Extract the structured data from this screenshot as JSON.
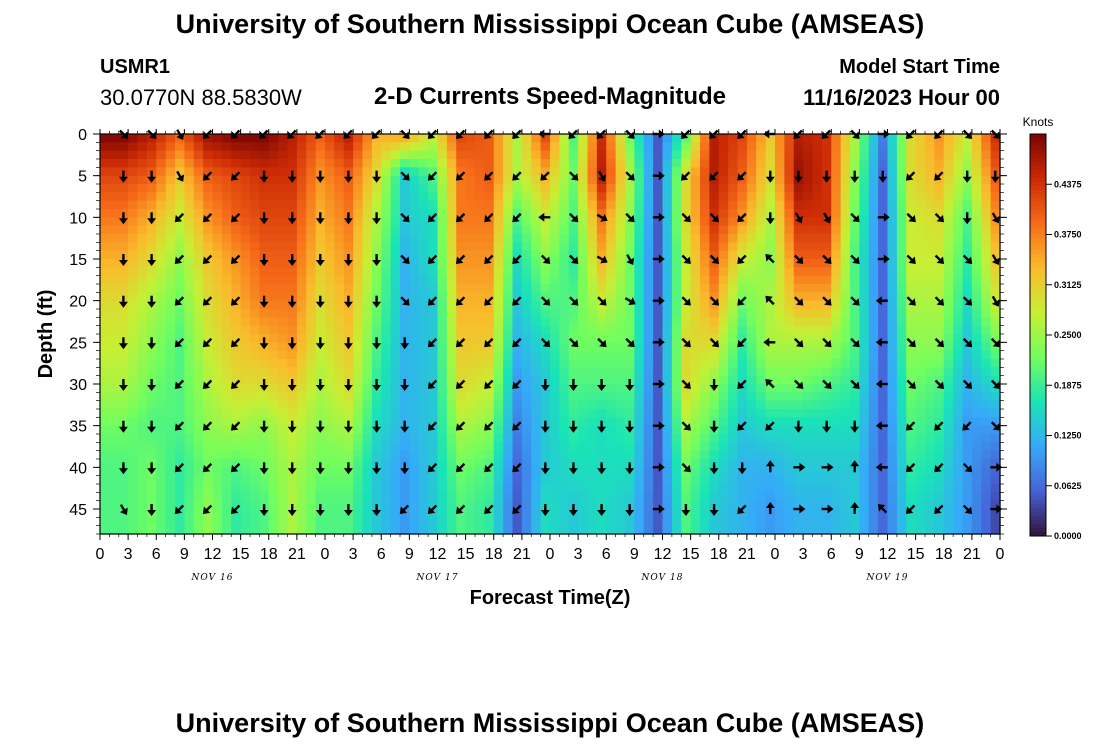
{
  "header": {
    "title": "University of Southern Mississippi Ocean Cube (AMSEAS)",
    "station": "USMR1",
    "coords": "30.0770N  88.5830W",
    "subtitle": "2-D Currents Speed-Magnitude",
    "model_start_label": "Model Start Time",
    "model_start_value": "11/16/2023 Hour 00"
  },
  "footer": {
    "title": "University of Southern Mississippi Ocean Cube (AMSEAS)"
  },
  "colors": {
    "scale": [
      "#30123b",
      "#4662d7",
      "#36aaf9",
      "#1ae4b6",
      "#72fe5e",
      "#c7ef34",
      "#fabb2c",
      "#f66b19",
      "#cb2a04",
      "#7a0403"
    ]
  },
  "chart_data": {
    "type": "heatmap",
    "title": "2-D Currents Speed-Magnitude",
    "xlabel": "Forecast Time(Z)",
    "ylabel": "Depth (ft)",
    "x_ticks": [
      "0",
      "3",
      "6",
      "9",
      "12",
      "15",
      "18",
      "21",
      "0",
      "3",
      "6",
      "9",
      "12",
      "15",
      "18",
      "21",
      "0",
      "3",
      "6",
      "9",
      "12",
      "15",
      "18",
      "21",
      "0",
      "3",
      "6",
      "9",
      "12",
      "15",
      "18",
      "21",
      "0"
    ],
    "x_range_hours": [
      0,
      96
    ],
    "day_labels": [
      {
        "label": "NOV 16",
        "hour": 12
      },
      {
        "label": "NOV 17",
        "hour": 36
      },
      {
        "label": "NOV 18",
        "hour": 60
      },
      {
        "label": "NOV 19",
        "hour": 84
      }
    ],
    "y_ticks": [
      "0",
      "5",
      "10",
      "15",
      "20",
      "25",
      "30",
      "35",
      "40",
      "45"
    ],
    "y_range_ft": [
      0,
      48
    ],
    "colorbar": {
      "units": "Knots",
      "min": 0.0,
      "max": 0.5,
      "tick_labels": [
        "0.4375",
        "0.3750",
        "0.3125",
        "0.2500",
        "0.1875",
        "0.1250",
        "0.0625",
        "0.0000"
      ],
      "tick_values": [
        0.4375,
        0.375,
        0.3125,
        0.25,
        0.1875,
        0.125,
        0.0625,
        0.0
      ]
    },
    "arrow_depths_ft": [
      0,
      5,
      10,
      15,
      20,
      25,
      30,
      35,
      40,
      45
    ],
    "arrow_hours": [
      2.5,
      5.5,
      8.5,
      11.5,
      14.5,
      17.5,
      20.5,
      23.5,
      26.5,
      29.5,
      32.5,
      35.5,
      38.5,
      41.5,
      44.5,
      47.5,
      50.5,
      53.5,
      56.5,
      59.5,
      62.5,
      65.5,
      68.5,
      71.5,
      74.5,
      77.5,
      80.5,
      83.5,
      86.5,
      89.5,
      92.5,
      95.5
    ],
    "speed_knots_by_depth": [
      [
        0.5,
        0.46,
        0.4,
        0.48,
        0.5,
        0.5,
        0.46,
        0.4,
        0.46,
        0.34,
        0.36,
        0.28,
        0.42,
        0.4,
        0.26,
        0.42,
        0.2,
        0.44,
        0.22,
        0.05,
        0.2,
        0.46,
        0.42,
        0.32,
        0.46,
        0.44,
        0.26,
        0.08,
        0.3,
        0.36,
        0.28,
        0.44
      ],
      [
        0.42,
        0.4,
        0.32,
        0.4,
        0.42,
        0.44,
        0.44,
        0.36,
        0.4,
        0.3,
        0.14,
        0.2,
        0.38,
        0.4,
        0.26,
        0.34,
        0.22,
        0.46,
        0.26,
        0.05,
        0.3,
        0.46,
        0.4,
        0.3,
        0.48,
        0.44,
        0.24,
        0.06,
        0.3,
        0.34,
        0.24,
        0.4
      ],
      [
        0.38,
        0.34,
        0.28,
        0.36,
        0.4,
        0.42,
        0.42,
        0.34,
        0.38,
        0.26,
        0.14,
        0.16,
        0.38,
        0.38,
        0.2,
        0.28,
        0.2,
        0.38,
        0.24,
        0.05,
        0.3,
        0.44,
        0.36,
        0.26,
        0.44,
        0.44,
        0.22,
        0.06,
        0.28,
        0.3,
        0.2,
        0.36
      ],
      [
        0.34,
        0.3,
        0.24,
        0.32,
        0.36,
        0.4,
        0.4,
        0.32,
        0.36,
        0.24,
        0.12,
        0.16,
        0.36,
        0.36,
        0.16,
        0.24,
        0.18,
        0.34,
        0.22,
        0.05,
        0.28,
        0.4,
        0.28,
        0.24,
        0.4,
        0.4,
        0.2,
        0.06,
        0.28,
        0.28,
        0.18,
        0.32
      ],
      [
        0.3,
        0.26,
        0.22,
        0.3,
        0.34,
        0.38,
        0.38,
        0.3,
        0.34,
        0.22,
        0.12,
        0.14,
        0.34,
        0.34,
        0.14,
        0.2,
        0.2,
        0.28,
        0.22,
        0.05,
        0.28,
        0.36,
        0.22,
        0.26,
        0.34,
        0.34,
        0.2,
        0.06,
        0.26,
        0.26,
        0.16,
        0.28
      ],
      [
        0.28,
        0.24,
        0.2,
        0.28,
        0.32,
        0.34,
        0.36,
        0.28,
        0.32,
        0.2,
        0.12,
        0.14,
        0.32,
        0.32,
        0.12,
        0.16,
        0.22,
        0.22,
        0.22,
        0.05,
        0.3,
        0.3,
        0.18,
        0.26,
        0.26,
        0.26,
        0.2,
        0.06,
        0.24,
        0.24,
        0.14,
        0.22
      ],
      [
        0.26,
        0.22,
        0.2,
        0.26,
        0.3,
        0.3,
        0.32,
        0.26,
        0.3,
        0.18,
        0.12,
        0.14,
        0.3,
        0.28,
        0.1,
        0.14,
        0.2,
        0.2,
        0.2,
        0.05,
        0.3,
        0.24,
        0.16,
        0.22,
        0.22,
        0.2,
        0.18,
        0.06,
        0.22,
        0.2,
        0.12,
        0.16
      ],
      [
        0.22,
        0.2,
        0.2,
        0.24,
        0.26,
        0.24,
        0.28,
        0.24,
        0.26,
        0.16,
        0.12,
        0.14,
        0.26,
        0.24,
        0.08,
        0.14,
        0.18,
        0.16,
        0.18,
        0.05,
        0.26,
        0.2,
        0.14,
        0.16,
        0.16,
        0.16,
        0.16,
        0.06,
        0.2,
        0.18,
        0.1,
        0.1
      ],
      [
        0.2,
        0.22,
        0.18,
        0.22,
        0.2,
        0.22,
        0.26,
        0.22,
        0.22,
        0.14,
        0.1,
        0.14,
        0.22,
        0.2,
        0.06,
        0.14,
        0.16,
        0.16,
        0.16,
        0.05,
        0.22,
        0.16,
        0.12,
        0.12,
        0.14,
        0.14,
        0.14,
        0.06,
        0.18,
        0.16,
        0.1,
        0.06
      ],
      [
        0.2,
        0.22,
        0.18,
        0.24,
        0.18,
        0.2,
        0.26,
        0.2,
        0.2,
        0.14,
        0.1,
        0.14,
        0.2,
        0.18,
        0.05,
        0.16,
        0.14,
        0.16,
        0.14,
        0.05,
        0.2,
        0.14,
        0.12,
        0.1,
        0.12,
        0.12,
        0.14,
        0.06,
        0.16,
        0.14,
        0.1,
        0.04
      ]
    ],
    "direction_deg_by_depth": [
      [
        315,
        315,
        300,
        225,
        225,
        225,
        225,
        225,
        225,
        225,
        315,
        225,
        225,
        225,
        225,
        180,
        225,
        225,
        315,
        0,
        225,
        225,
        225,
        180,
        225,
        225,
        315,
        0,
        225,
        225,
        315,
        315
      ],
      [
        270,
        270,
        300,
        225,
        225,
        270,
        270,
        270,
        270,
        270,
        315,
        225,
        225,
        225,
        225,
        225,
        315,
        300,
        315,
        0,
        225,
        225,
        225,
        270,
        270,
        270,
        270,
        270,
        225,
        225,
        270,
        270
      ],
      [
        270,
        270,
        225,
        225,
        225,
        270,
        270,
        270,
        270,
        270,
        315,
        225,
        225,
        225,
        225,
        180,
        315,
        330,
        315,
        0,
        315,
        315,
        225,
        270,
        300,
        300,
        315,
        0,
        315,
        315,
        270,
        300
      ],
      [
        270,
        270,
        225,
        225,
        225,
        270,
        270,
        270,
        270,
        270,
        315,
        225,
        225,
        225,
        225,
        315,
        315,
        330,
        300,
        0,
        315,
        315,
        225,
        135,
        315,
        315,
        315,
        0,
        315,
        315,
        315,
        300
      ],
      [
        270,
        270,
        225,
        225,
        225,
        270,
        270,
        270,
        270,
        270,
        315,
        225,
        225,
        225,
        225,
        315,
        315,
        315,
        330,
        0,
        315,
        315,
        225,
        135,
        315,
        315,
        315,
        180,
        315,
        315,
        315,
        300
      ],
      [
        270,
        270,
        225,
        225,
        225,
        270,
        270,
        270,
        270,
        270,
        270,
        225,
        225,
        225,
        225,
        315,
        315,
        315,
        315,
        0,
        315,
        315,
        225,
        180,
        315,
        315,
        315,
        180,
        315,
        315,
        315,
        315
      ],
      [
        270,
        270,
        225,
        225,
        225,
        270,
        270,
        270,
        270,
        270,
        270,
        225,
        225,
        225,
        225,
        270,
        270,
        270,
        270,
        0,
        315,
        270,
        225,
        135,
        315,
        315,
        315,
        180,
        315,
        315,
        315,
        315
      ],
      [
        270,
        270,
        225,
        225,
        225,
        270,
        270,
        270,
        270,
        270,
        270,
        225,
        225,
        225,
        225,
        270,
        270,
        270,
        270,
        0,
        315,
        270,
        225,
        225,
        270,
        270,
        270,
        180,
        225,
        225,
        225,
        315
      ],
      [
        270,
        270,
        225,
        225,
        225,
        270,
        270,
        270,
        270,
        270,
        270,
        225,
        225,
        225,
        225,
        270,
        270,
        270,
        270,
        0,
        315,
        270,
        270,
        90,
        0,
        0,
        90,
        180,
        225,
        225,
        315,
        0
      ],
      [
        300,
        270,
        225,
        225,
        225,
        270,
        270,
        270,
        270,
        270,
        225,
        225,
        225,
        225,
        225,
        270,
        270,
        270,
        270,
        0,
        270,
        270,
        225,
        90,
        0,
        0,
        90,
        135,
        225,
        225,
        315,
        0
      ]
    ]
  }
}
